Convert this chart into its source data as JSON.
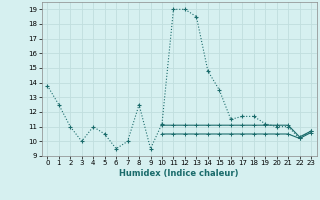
{
  "xlabel": "Humidex (Indice chaleur)",
  "bg_color": "#d6f0f0",
  "grid_color": "#c0dede",
  "line_color": "#1a6b6b",
  "xlim": [
    -0.5,
    23.5
  ],
  "ylim": [
    9,
    19.5
  ],
  "xticks": [
    0,
    1,
    2,
    3,
    4,
    5,
    6,
    7,
    8,
    9,
    10,
    11,
    12,
    13,
    14,
    15,
    16,
    17,
    18,
    19,
    20,
    21,
    22,
    23
  ],
  "yticks": [
    9,
    10,
    11,
    12,
    13,
    14,
    15,
    16,
    17,
    18,
    19
  ],
  "s1": [
    13.8,
    12.5,
    11.0,
    10.0,
    11.0,
    10.5,
    9.5,
    10.0,
    12.5,
    9.5,
    11.2,
    19.0,
    19.0,
    18.5,
    14.8,
    13.5,
    11.5,
    11.7,
    11.7,
    11.2,
    11.0,
    11.0,
    10.2,
    10.7
  ],
  "s2_x": [
    10,
    11,
    12,
    13,
    14,
    15,
    16,
    17,
    18,
    19,
    20,
    21,
    22,
    23
  ],
  "s2_y": [
    11.1,
    11.1,
    11.1,
    11.1,
    11.1,
    11.1,
    11.1,
    11.1,
    11.1,
    11.1,
    11.1,
    11.1,
    10.3,
    10.7
  ],
  "s3_x": [
    10,
    11,
    12,
    13,
    14,
    15,
    16,
    17,
    18,
    19,
    20,
    21,
    22,
    23
  ],
  "s3_y": [
    10.5,
    10.5,
    10.5,
    10.5,
    10.5,
    10.5,
    10.5,
    10.5,
    10.5,
    10.5,
    10.5,
    10.5,
    10.2,
    10.6
  ]
}
